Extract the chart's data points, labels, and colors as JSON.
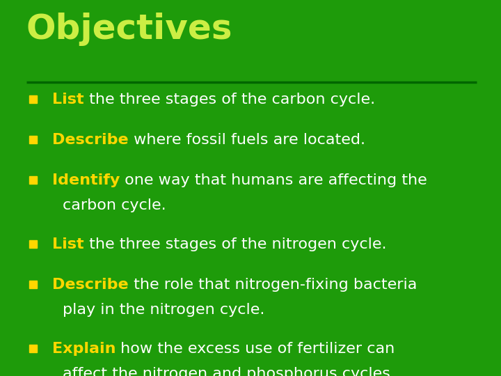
{
  "title": "Objectives",
  "title_color": "#CCEE44",
  "background_color": "#1E9B0A",
  "bullet_color": "#FFD700",
  "text_color": "#FFFFFF",
  "separator_color": "#006600",
  "items": [
    {
      "keyword": "List",
      "rest": " the three stages of the carbon cycle.",
      "wrap": false
    },
    {
      "keyword": "Describe",
      "rest": " where fossil fuels are located.",
      "wrap": false
    },
    {
      "keyword": "Identify",
      "rest": " one way that humans are affecting the",
      "cont": "carbon cycle.",
      "wrap": true
    },
    {
      "keyword": "List",
      "rest": " the three stages of the nitrogen cycle.",
      "wrap": false
    },
    {
      "keyword": "Describe",
      "rest": " the role that nitrogen-fixing bacteria",
      "cont": "play in the nitrogen cycle.",
      "wrap": true
    },
    {
      "keyword": "Explain",
      "rest": " how the excess use of fertilizer can",
      "cont": "affect the nitrogen and phosphorus cycles.",
      "wrap": true
    }
  ],
  "title_fontsize": 36,
  "text_fontsize": 16,
  "figsize": [
    7.2,
    5.4
  ],
  "dpi": 100
}
